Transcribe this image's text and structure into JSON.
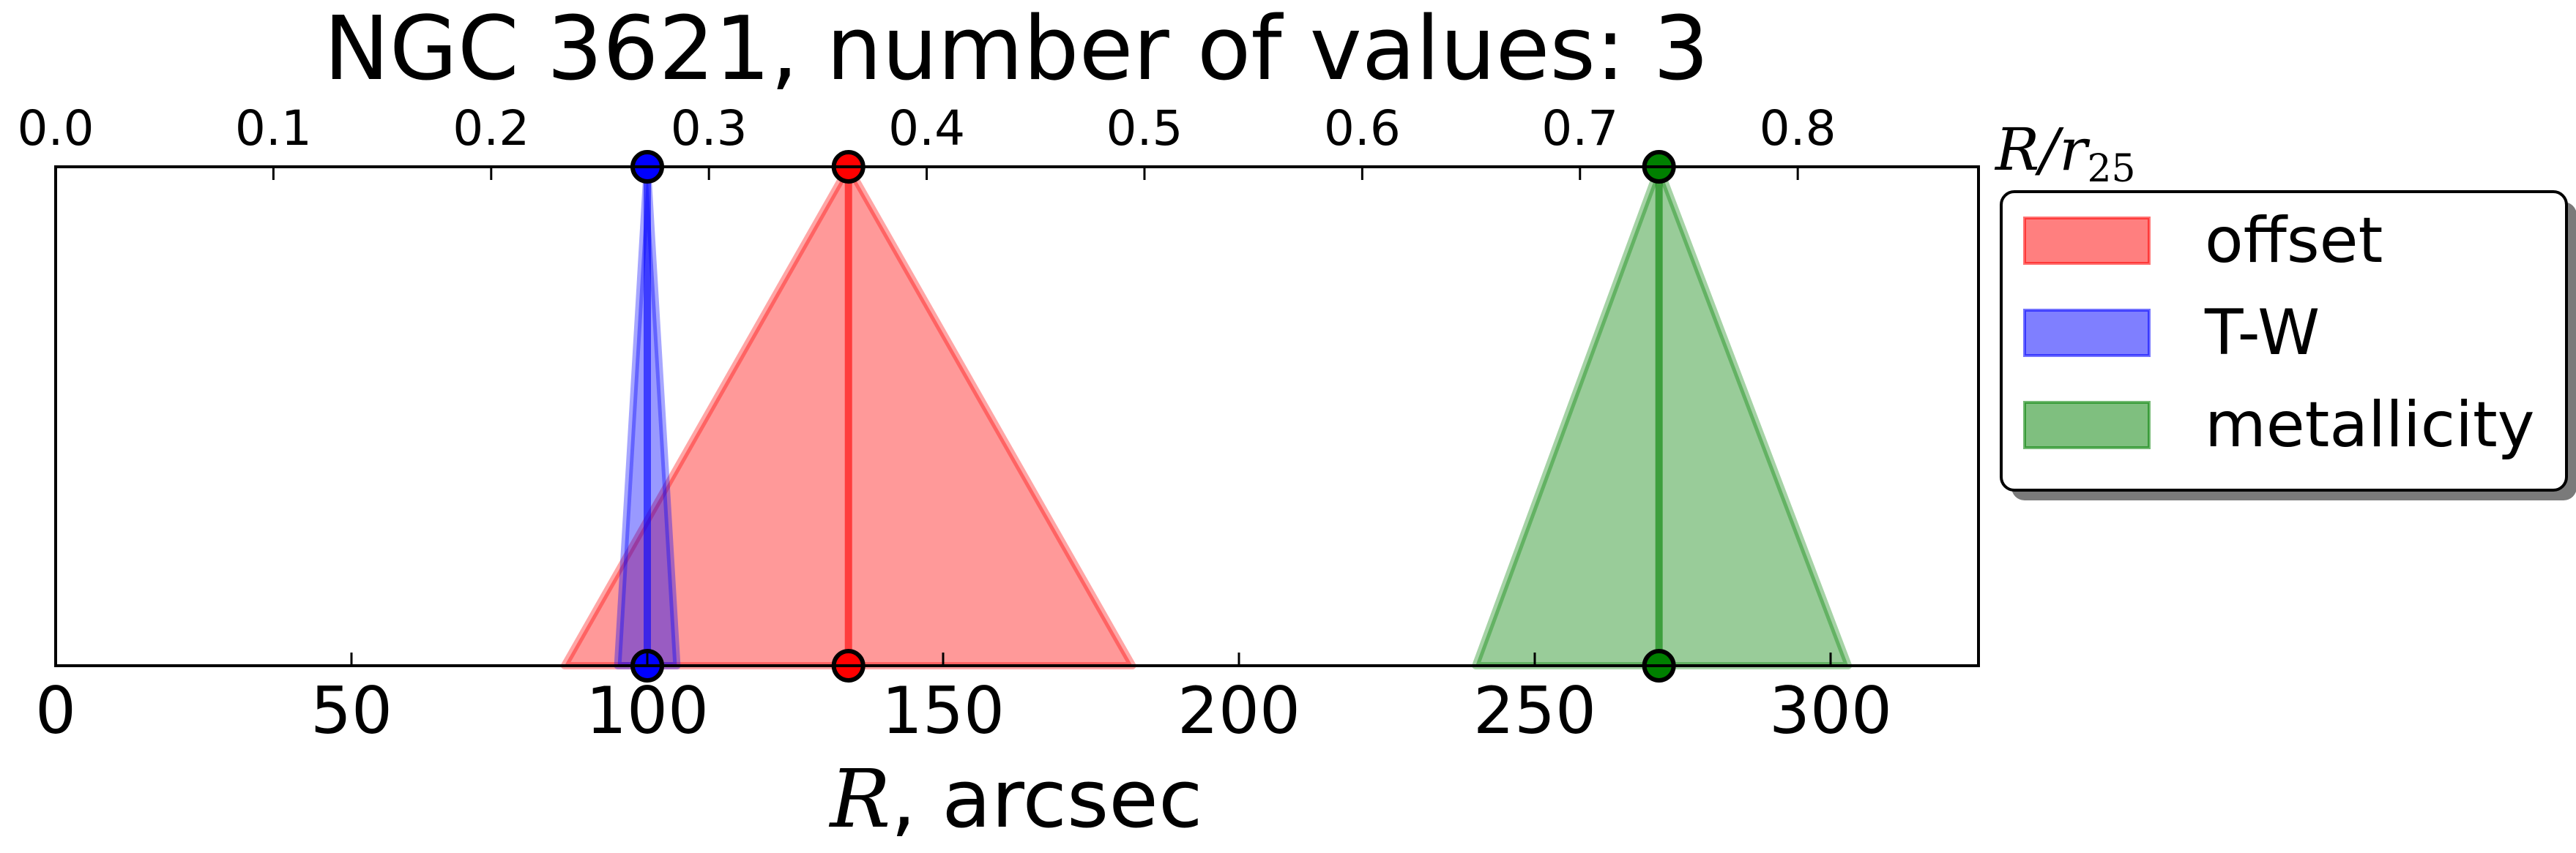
{
  "chart_data": {
    "type": "area",
    "title": "NGC 3621, number of values: 3",
    "xlabel_var": "R",
    "xlabel_unit": ", arcsec",
    "top_xlabel_var": "R/r",
    "top_xlabel_sub": "25",
    "xlim": [
      0,
      325
    ],
    "xticks": [
      0,
      50,
      100,
      150,
      200,
      250,
      300
    ],
    "top_xlim": [
      0,
      0.883
    ],
    "top_xticks": [
      0.0,
      0.1,
      0.2,
      0.3,
      0.4,
      0.5,
      0.6,
      0.7,
      0.8
    ],
    "top_xtick_labels": [
      "0.0",
      "0.1",
      "0.2",
      "0.3",
      "0.4",
      "0.5",
      "0.6",
      "0.7",
      "0.8"
    ],
    "legend_position": "outside-right-top",
    "series": [
      {
        "name": "offset",
        "value": 134,
        "lower": 86,
        "upper": 182,
        "color": "#ff0000"
      },
      {
        "name": "T-W",
        "value": 100,
        "lower": 95,
        "upper": 105,
        "color": "#0000ff"
      },
      {
        "name": "metallicity",
        "value": 271,
        "lower": 240,
        "upper": 303,
        "color": "#008000"
      }
    ]
  }
}
